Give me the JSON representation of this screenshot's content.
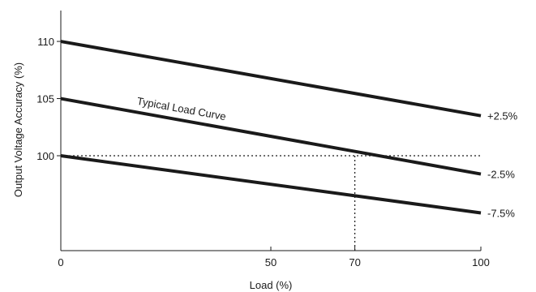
{
  "chart_data": {
    "type": "line",
    "title": "",
    "xlabel": "Load (%)",
    "ylabel": "Output Voltage Accuracy (%)",
    "xlim": [
      0,
      100
    ],
    "ylim": [
      91.7,
      112.7
    ],
    "x_ticks": [
      0,
      50,
      70,
      100
    ],
    "y_ticks": [
      100,
      105,
      110
    ],
    "grid": false,
    "series": [
      {
        "name": "+2.5%",
        "x": [
          0,
          100
        ],
        "y": [
          110,
          103.5
        ]
      },
      {
        "name": "-2.5%",
        "x": [
          0,
          100
        ],
        "y": [
          105,
          98.4
        ]
      },
      {
        "name": "-7.5%",
        "x": [
          0,
          100
        ],
        "y": [
          100,
          95
        ]
      }
    ],
    "reference_lines": [
      {
        "type": "horizontal",
        "y": 100,
        "x_range": [
          0,
          100
        ],
        "style": "dotted"
      },
      {
        "type": "vertical",
        "x": 70,
        "y_range": [
          91.7,
          100
        ],
        "style": "dotted"
      }
    ],
    "annotations": [
      {
        "text": "Typical Load Curve",
        "x": 18,
        "y": 104.5
      }
    ],
    "colors": {
      "line": "#1a1a1a",
      "reference": "#1a1a1a"
    }
  }
}
